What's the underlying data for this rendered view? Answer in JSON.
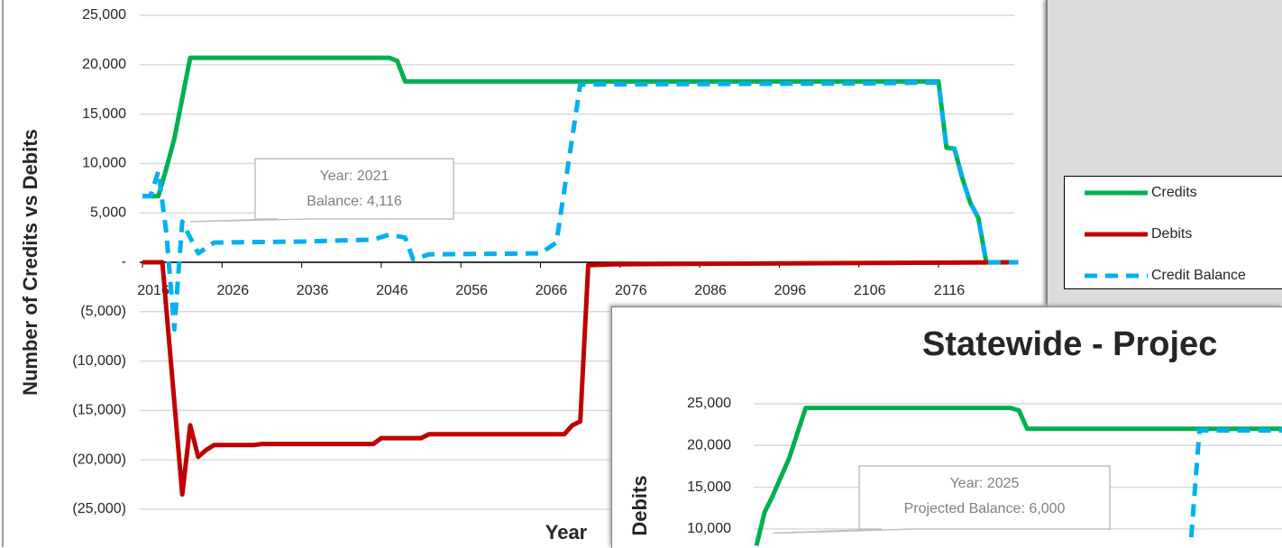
{
  "chart_data": [
    {
      "type": "line",
      "y_label": "Number of Credits vs Debits",
      "x_label": "Year",
      "xlim": [
        2016,
        2126
      ],
      "xticks": [
        2016,
        2026,
        2036,
        2046,
        2056,
        2066,
        2076,
        2086,
        2096,
        2106,
        2116
      ],
      "ylim": [
        -25000,
        25000
      ],
      "yticks": [
        {
          "value": 25000,
          "label": "25,000"
        },
        {
          "value": 20000,
          "label": "20,000"
        },
        {
          "value": 15000,
          "label": "15,000"
        },
        {
          "value": 10000,
          "label": "10,000"
        },
        {
          "value": 5000,
          "label": "5,000"
        },
        {
          "value": 0,
          "label": "-"
        },
        {
          "value": -5000,
          "label": "(5,000)"
        },
        {
          "value": -10000,
          "label": "(10,000)"
        },
        {
          "value": -15000,
          "label": "(15,000)"
        },
        {
          "value": -20000,
          "label": "(20,000)"
        },
        {
          "value": -25000,
          "label": "(25,000)"
        }
      ],
      "grid": true,
      "annotation": {
        "lines": [
          "Year: 2021",
          "Balance: 4,116"
        ],
        "x": 2022,
        "y": 4116
      },
      "series": [
        {
          "name": "Credits",
          "color": "#00b050",
          "style": "solid",
          "x": [
            2016,
            2018,
            2019,
            2020,
            2022,
            2047,
            2048,
            2049,
            2116,
            2117,
            2118,
            2119,
            2120,
            2121,
            2122,
            2126
          ],
          "values": [
            6700,
            6700,
            9500,
            12500,
            20700,
            20700,
            20400,
            18300,
            18300,
            11600,
            11500,
            8500,
            6000,
            4500,
            0,
            0
          ]
        },
        {
          "name": "Debits",
          "color": "#c00000",
          "style": "solid",
          "x": [
            2016,
            2018.5,
            2021,
            2022,
            2023,
            2024,
            2025,
            2030,
            2031,
            2045,
            2046,
            2051,
            2052,
            2069,
            2070,
            2071,
            2072,
            2075,
            2126
          ],
          "values": [
            0,
            0,
            -23500,
            -16500,
            -19700,
            -19000,
            -18500,
            -18500,
            -18400,
            -18400,
            -17800,
            -17800,
            -17400,
            -17400,
            -16500,
            -16100,
            -300,
            -200,
            0
          ]
        },
        {
          "name": "Credit Balance",
          "color": "#00b0f0",
          "style": "dashed",
          "x": [
            2016,
            2017,
            2018,
            2019,
            2020,
            2021,
            2022,
            2023,
            2025,
            2036,
            2045,
            2047,
            2049,
            2050,
            2052,
            2066,
            2068,
            2071,
            2105,
            2116,
            2117,
            2118,
            2119,
            2120,
            2121,
            2122,
            2126
          ],
          "values": [
            6700,
            6700,
            9200,
            3000,
            -6800,
            4116,
            2500,
            900,
            2000,
            2100,
            2300,
            2800,
            2500,
            300,
            800,
            900,
            2000,
            18000,
            18100,
            18200,
            11600,
            11500,
            8500,
            6000,
            4500,
            0,
            0
          ]
        }
      ]
    },
    {
      "type": "line",
      "title": "Statewide - Projec",
      "y_label": "Debits",
      "xlim": [
        2016,
        2081
      ],
      "ylim": [
        10000,
        25000
      ],
      "yticks": [
        {
          "value": 25000,
          "label": "25,000"
        },
        {
          "value": 20000,
          "label": "20,000"
        },
        {
          "value": 15000,
          "label": "15,000"
        },
        {
          "value": 10000,
          "label": "10,000"
        }
      ],
      "grid": true,
      "annotation": {
        "lines": [
          "Year: 2025",
          "Projected Balance: 6,000"
        ],
        "x": 2018,
        "y": 9500
      },
      "series": [
        {
          "name": "Credits",
          "color": "#00b050",
          "style": "solid",
          "x": [
            2016,
            2017,
            2018,
            2020,
            2022,
            2047,
            2048,
            2049,
            2081
          ],
          "values": [
            8000,
            12000,
            14000,
            18500,
            24500,
            24500,
            24200,
            22000,
            22000
          ]
        },
        {
          "name": "Credit Balance",
          "color": "#00b0f0",
          "style": "dashed",
          "x": [
            2069,
            2070,
            2081
          ],
          "values": [
            9000,
            21800,
            21800
          ]
        }
      ]
    }
  ]
}
